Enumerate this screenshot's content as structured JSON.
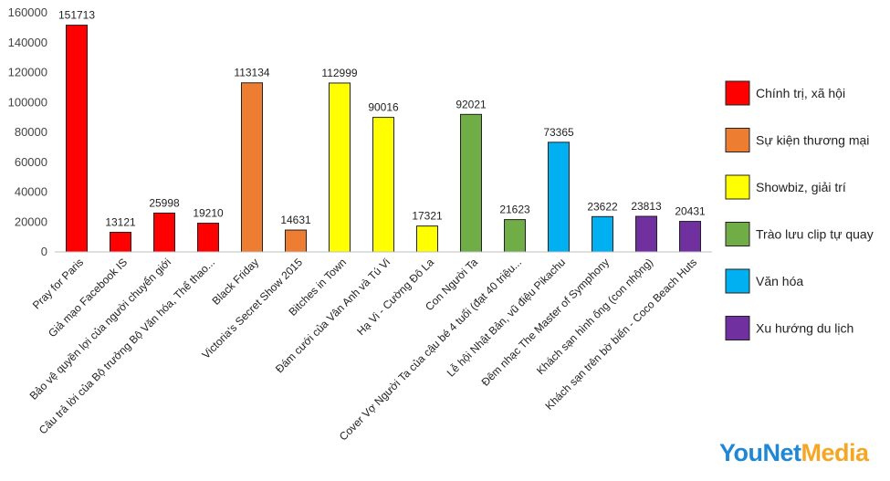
{
  "chart_data": {
    "type": "bar",
    "title": "",
    "xlabel": "",
    "ylabel": "",
    "ylim": [
      0,
      160000
    ],
    "yticks": [
      "0",
      "20000",
      "40000",
      "60000",
      "80000",
      "100000",
      "120000",
      "140000",
      "160000"
    ],
    "grid": false,
    "legend_position": "right",
    "categories": [
      "Pray for Paris",
      "Giả mạo Facebook IS",
      "Bảo vệ quyền lợi của người chuyển giới",
      "Câu trả lời của Bộ trưởng Bộ Văn hóa, Thể thao...",
      "Black Friday",
      "Victoria's Secret Show 2015",
      "Bitches in Town",
      "Đám cưới của Vân Anh và Tú Vi",
      "Hạ Vi - Cường Đô La",
      "Con Người Ta",
      "Cover Vợ Người Ta của cậu bé 4 tuổi (đạt 40 triệu...",
      "Lễ hội Nhật Bản, vũ điệu Pikachu",
      "Đêm nhạc The Master of Symphony",
      "Khách sạn hình ống (con nhộng)",
      "Khách sạn trên bờ biển - Coco Beach Huts"
    ],
    "values": [
      151713,
      13121,
      25998,
      19210,
      113134,
      14631,
      112999,
      90016,
      17321,
      92021,
      21623,
      73365,
      23622,
      23813,
      20431
    ],
    "value_labels": [
      "151713",
      "13121",
      "25998",
      "19210",
      "113134",
      "14631",
      "112999",
      "90016",
      "17321",
      "92021",
      "21623",
      "73365",
      "23622",
      "23813",
      "20431"
    ],
    "groups": [
      0,
      0,
      0,
      0,
      1,
      1,
      2,
      2,
      2,
      3,
      3,
      4,
      4,
      5,
      5
    ],
    "legend": [
      {
        "name": "Chính trị, xã hội",
        "color": "#ff0000"
      },
      {
        "name": "Sự kiện thương mại",
        "color": "#ed7d31"
      },
      {
        "name": "Showbiz, giải trí",
        "color": "#ffff00"
      },
      {
        "name": "Trào lưu clip tự quay",
        "color": "#70ad47"
      },
      {
        "name": "Văn hóa",
        "color": "#00b0f0"
      },
      {
        "name": "Xu hướng du lịch",
        "color": "#7030a0"
      }
    ]
  },
  "brand": {
    "part1": "YouNet",
    "part2": "Media"
  }
}
